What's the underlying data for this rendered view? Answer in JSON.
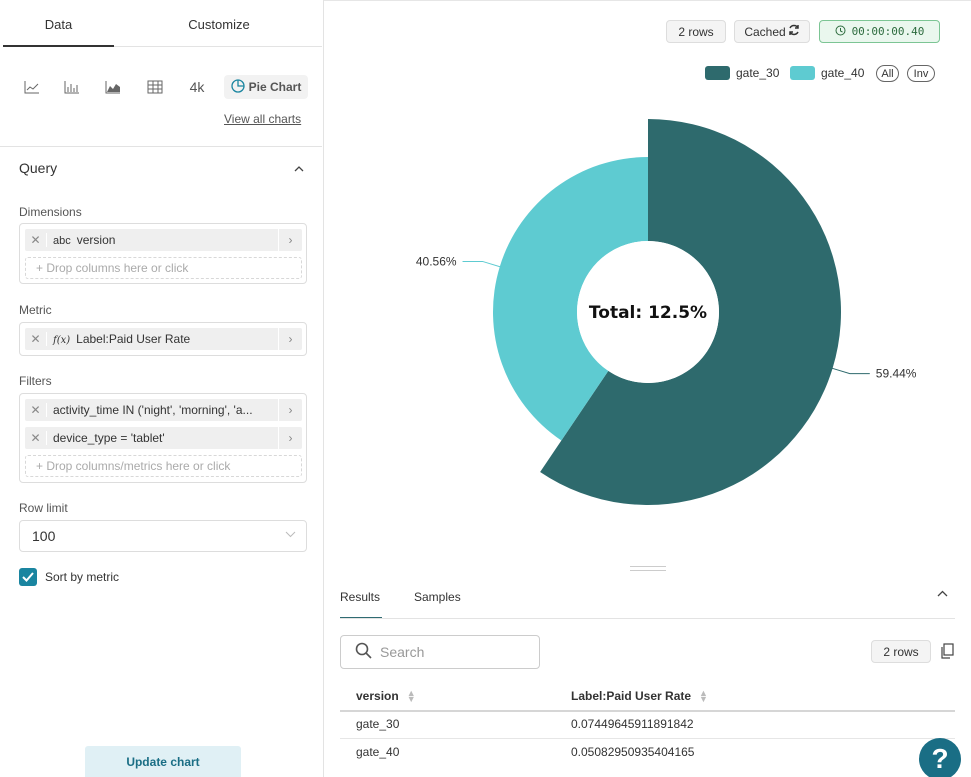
{
  "left_panel": {
    "tabs": [
      {
        "label": "Data"
      },
      {
        "label": "Customize"
      }
    ],
    "chart_type_4k": "4k",
    "selected_chart": "Pie Chart",
    "view_all_charts": "View all charts",
    "query": {
      "title": "Query",
      "dimensions_label": "Dimensions",
      "dimension_type": "abc",
      "dimension_value": "version",
      "dimension_drop": "+ Drop columns here or click",
      "metric_label": "Metric",
      "metric_prefix": "f(x)",
      "metric_value": "Label:Paid User Rate",
      "filters_label": "Filters",
      "filters": [
        {
          "text": "activity_time IN ('night', 'morning', 'a..."
        },
        {
          "text": "device_type = 'tablet'"
        }
      ],
      "filters_drop": "+ Drop columns/metrics here or click",
      "row_limit_label": "Row limit",
      "row_limit_value": "100",
      "sort_by_metric": "Sort by metric",
      "sort_checked": true
    },
    "update_button": "Update chart"
  },
  "top_bar": {
    "rows": "2 rows",
    "cached": "Cached",
    "timer": "00:00:00.40"
  },
  "legend": {
    "all": "All",
    "inv": "Inv"
  },
  "chart_data": {
    "type": "pie",
    "donut": true,
    "center_label": "Total: 12.5%",
    "categories": [
      "gate_30",
      "gate_40"
    ],
    "values": [
      59.44,
      40.56
    ],
    "labels": [
      "59.44%",
      "40.56%"
    ],
    "colors": [
      "#2e6a6d",
      "#5ecbd1"
    ],
    "legend_position": "top-right"
  },
  "results": {
    "tabs": [
      {
        "label": "Results"
      },
      {
        "label": "Samples"
      }
    ],
    "search_placeholder": "Search",
    "rows_badge": "2 rows",
    "columns": [
      "version",
      "Label:Paid User Rate"
    ],
    "rows": [
      [
        "gate_30",
        "0.07449645911891842"
      ],
      [
        "gate_40",
        "0.05082950935404165"
      ]
    ]
  },
  "help_label": "?"
}
